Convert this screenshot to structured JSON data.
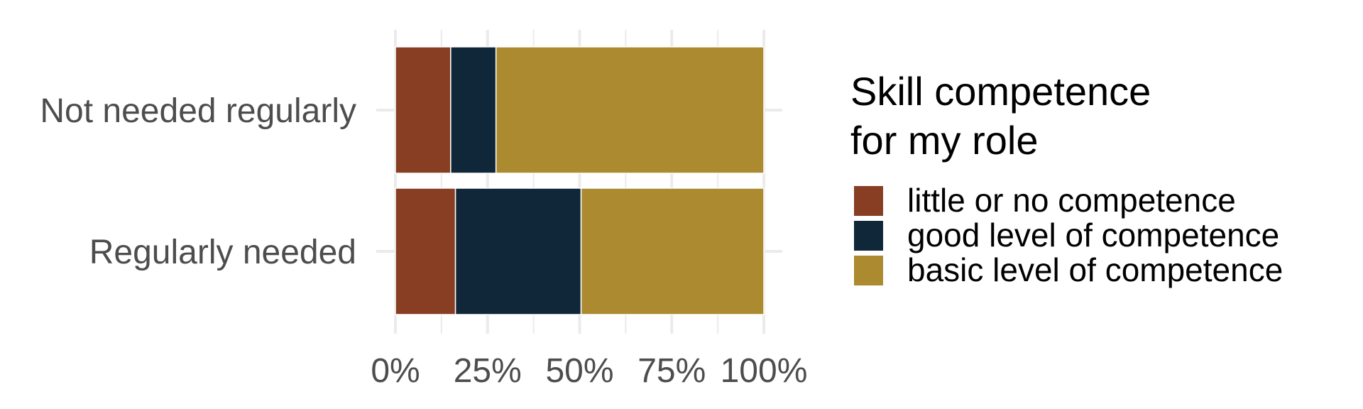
{
  "chart_data": {
    "type": "bar",
    "orientation": "horizontal",
    "stacked": true,
    "percent": true,
    "categories": [
      "Not needed regularly",
      "Regularly needed"
    ],
    "series": [
      {
        "name": "little or no competence",
        "color": "#873E23",
        "values": [
          15,
          16.3
        ]
      },
      {
        "name": "good level of competence",
        "color": "#10273A",
        "values": [
          12.3,
          34.1
        ]
      },
      {
        "name": "basic level of competence",
        "color": "#AB8A30",
        "values": [
          72.7,
          49.6
        ]
      }
    ],
    "x_ticks": [
      "0%",
      "25%",
      "50%",
      "75%",
      "100%"
    ],
    "xlim": [
      0,
      100
    ],
    "legend_title": [
      "Skill competence",
      "for my role"
    ],
    "legend_position": "right",
    "grid": true
  }
}
